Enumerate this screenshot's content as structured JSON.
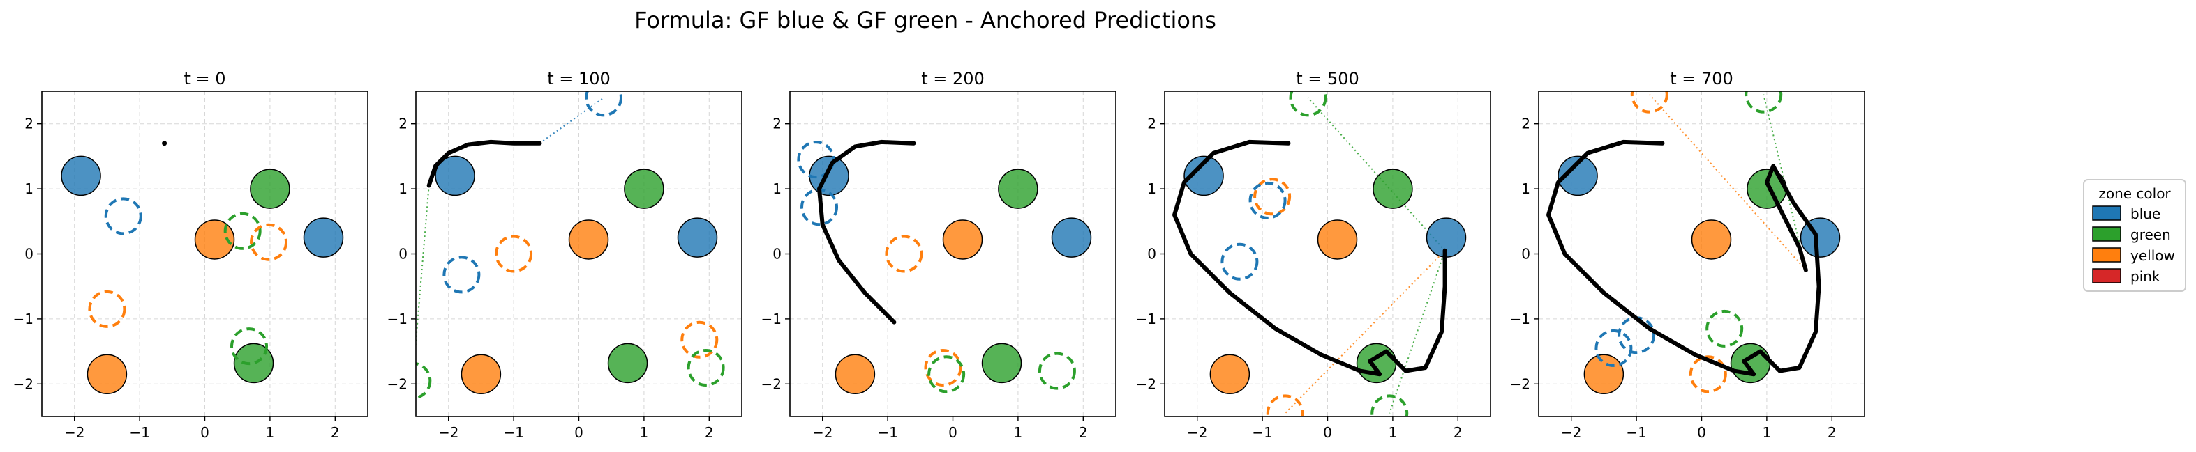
{
  "title": "Formula: GF blue & GF green - Anchored Predictions",
  "colors": {
    "blue": "#1f77b4",
    "green": "#2ca02c",
    "yellow": "#ff7f0e",
    "pink": "#d62728",
    "trajectory": "#000000"
  },
  "legend": {
    "title": "zone color",
    "placement": "right",
    "entries": [
      {
        "label": "blue",
        "color": "#1f77b4"
      },
      {
        "label": "green",
        "color": "#2ca02c"
      },
      {
        "label": "yellow",
        "color": "#ff7f0e"
      },
      {
        "label": "pink",
        "color": "#d62728"
      }
    ]
  },
  "chart_data": [
    {
      "type": "scatter",
      "title": "t = 0",
      "xlim": [
        -2.5,
        2.5
      ],
      "ylim": [
        -2.5,
        2.5
      ],
      "xticks": [
        -2,
        -1,
        0,
        1,
        2
      ],
      "yticks": [
        -2,
        -1,
        0,
        1,
        2
      ],
      "grid": true,
      "zones": [
        {
          "color": "blue",
          "x": -1.9,
          "y": 1.2
        },
        {
          "color": "green",
          "x": 1.0,
          "y": 1.0
        },
        {
          "color": "yellow",
          "x": 0.15,
          "y": 0.22
        },
        {
          "color": "blue",
          "x": 1.82,
          "y": 0.25
        },
        {
          "color": "yellow",
          "x": -1.5,
          "y": -1.85
        },
        {
          "color": "green",
          "x": 0.75,
          "y": -1.68
        }
      ],
      "predictions": [
        {
          "color": "blue",
          "x": -1.25,
          "y": 0.58
        },
        {
          "color": "green",
          "x": 0.58,
          "y": 0.35
        },
        {
          "color": "yellow",
          "x": 0.98,
          "y": 0.18
        },
        {
          "color": "yellow",
          "x": -1.5,
          "y": -0.85
        },
        {
          "color": "green",
          "x": 0.68,
          "y": -1.42
        }
      ],
      "trajectory": [
        [
          -0.62,
          1.7
        ]
      ],
      "links": []
    },
    {
      "type": "scatter",
      "title": "t = 100",
      "xlim": [
        -2.5,
        2.5
      ],
      "ylim": [
        -2.5,
        2.5
      ],
      "xticks": [
        -2,
        -1,
        0,
        1,
        2
      ],
      "yticks": [
        -2,
        -1,
        0,
        1,
        2
      ],
      "grid": true,
      "zones": [
        {
          "color": "blue",
          "x": -1.9,
          "y": 1.2
        },
        {
          "color": "green",
          "x": 1.0,
          "y": 1.0
        },
        {
          "color": "yellow",
          "x": 0.15,
          "y": 0.22
        },
        {
          "color": "blue",
          "x": 1.82,
          "y": 0.25
        },
        {
          "color": "yellow",
          "x": -1.5,
          "y": -1.85
        },
        {
          "color": "green",
          "x": 0.75,
          "y": -1.68
        }
      ],
      "predictions": [
        {
          "color": "blue",
          "x": 0.38,
          "y": 2.4
        },
        {
          "color": "blue",
          "x": -1.8,
          "y": -0.32
        },
        {
          "color": "yellow",
          "x": -1.0,
          "y": 0.0
        },
        {
          "color": "green",
          "x": -2.55,
          "y": -1.95
        },
        {
          "color": "yellow",
          "x": 1.85,
          "y": -1.32
        },
        {
          "color": "green",
          "x": 1.95,
          "y": -1.75
        }
      ],
      "trajectory": [
        [
          -2.3,
          1.05
        ],
        [
          -2.2,
          1.35
        ],
        [
          -2.0,
          1.55
        ],
        [
          -1.7,
          1.68
        ],
        [
          -1.35,
          1.72
        ],
        [
          -1.0,
          1.7
        ],
        [
          -0.6,
          1.7
        ]
      ],
      "links": [
        {
          "color": "blue",
          "from": [
            -0.6,
            1.7
          ],
          "to": [
            0.38,
            2.4
          ]
        },
        {
          "color": "green",
          "from": [
            -2.3,
            1.05
          ],
          "to": [
            -2.55,
            -1.95
          ]
        }
      ]
    },
    {
      "type": "scatter",
      "title": "t = 200",
      "xlim": [
        -2.5,
        2.5
      ],
      "ylim": [
        -2.5,
        2.5
      ],
      "xticks": [
        -2,
        -1,
        0,
        1,
        2
      ],
      "yticks": [
        -2,
        -1,
        0,
        1,
        2
      ],
      "grid": true,
      "zones": [
        {
          "color": "blue",
          "x": -1.9,
          "y": 1.2
        },
        {
          "color": "green",
          "x": 1.0,
          "y": 1.0
        },
        {
          "color": "yellow",
          "x": 0.15,
          "y": 0.22
        },
        {
          "color": "blue",
          "x": 1.82,
          "y": 0.25
        },
        {
          "color": "yellow",
          "x": -1.5,
          "y": -1.85
        },
        {
          "color": "green",
          "x": 0.75,
          "y": -1.68
        }
      ],
      "predictions": [
        {
          "color": "blue",
          "x": -2.1,
          "y": 1.45
        },
        {
          "color": "blue",
          "x": -2.05,
          "y": 0.72
        },
        {
          "color": "yellow",
          "x": -0.75,
          "y": 0.0
        },
        {
          "color": "yellow",
          "x": -0.15,
          "y": -1.75
        },
        {
          "color": "green",
          "x": -0.1,
          "y": -1.85
        },
        {
          "color": "green",
          "x": 1.6,
          "y": -1.8
        }
      ],
      "trajectory": [
        [
          -0.9,
          -1.05
        ],
        [
          -1.35,
          -0.6
        ],
        [
          -1.75,
          -0.1
        ],
        [
          -2.0,
          0.45
        ],
        [
          -2.05,
          1.0
        ],
        [
          -1.85,
          1.4
        ],
        [
          -1.5,
          1.65
        ],
        [
          -1.1,
          1.72
        ],
        [
          -0.6,
          1.7
        ]
      ],
      "links": []
    },
    {
      "type": "scatter",
      "title": "t = 500",
      "xlim": [
        -2.5,
        2.5
      ],
      "ylim": [
        -2.5,
        2.5
      ],
      "xticks": [
        -2,
        -1,
        0,
        1,
        2
      ],
      "yticks": [
        -2,
        -1,
        0,
        1,
        2
      ],
      "grid": true,
      "zones": [
        {
          "color": "blue",
          "x": -1.9,
          "y": 1.2
        },
        {
          "color": "green",
          "x": 1.0,
          "y": 1.0
        },
        {
          "color": "yellow",
          "x": 0.15,
          "y": 0.22
        },
        {
          "color": "blue",
          "x": 1.82,
          "y": 0.25
        },
        {
          "color": "yellow",
          "x": -1.5,
          "y": -1.85
        },
        {
          "color": "green",
          "x": 0.75,
          "y": -1.68
        }
      ],
      "predictions": [
        {
          "color": "green",
          "x": -0.3,
          "y": 2.4
        },
        {
          "color": "yellow",
          "x": -0.85,
          "y": 0.88
        },
        {
          "color": "blue",
          "x": -0.92,
          "y": 0.82
        },
        {
          "color": "blue",
          "x": -1.35,
          "y": -0.12
        },
        {
          "color": "yellow",
          "x": -0.65,
          "y": -2.45
        },
        {
          "color": "green",
          "x": 0.95,
          "y": -2.45
        }
      ],
      "trajectory": [
        [
          -0.6,
          1.7
        ],
        [
          -1.2,
          1.72
        ],
        [
          -1.75,
          1.55
        ],
        [
          -2.2,
          1.1
        ],
        [
          -2.35,
          0.6
        ],
        [
          -2.1,
          0.0
        ],
        [
          -1.5,
          -0.6
        ],
        [
          -0.8,
          -1.15
        ],
        [
          -0.1,
          -1.55
        ],
        [
          0.5,
          -1.8
        ],
        [
          0.8,
          -1.85
        ],
        [
          0.65,
          -1.65
        ],
        [
          0.9,
          -1.5
        ],
        [
          1.2,
          -1.8
        ],
        [
          1.5,
          -1.75
        ],
        [
          1.75,
          -1.2
        ],
        [
          1.8,
          -0.5
        ],
        [
          1.8,
          0.05
        ]
      ],
      "links": [
        {
          "color": "green",
          "from": [
            1.8,
            0.05
          ],
          "to": [
            -0.3,
            2.4
          ]
        },
        {
          "color": "yellow",
          "from": [
            1.8,
            0.05
          ],
          "to": [
            -0.65,
            -2.45
          ]
        },
        {
          "color": "green",
          "from": [
            1.8,
            0.05
          ],
          "to": [
            0.95,
            -2.45
          ]
        }
      ]
    },
    {
      "type": "scatter",
      "title": "t = 700",
      "xlim": [
        -2.5,
        2.5
      ],
      "ylim": [
        -2.5,
        2.5
      ],
      "xticks": [
        -2,
        -1,
        0,
        1,
        2
      ],
      "yticks": [
        -2,
        -1,
        0,
        1,
        2
      ],
      "grid": true,
      "zones": [
        {
          "color": "blue",
          "x": -1.9,
          "y": 1.2
        },
        {
          "color": "green",
          "x": 1.0,
          "y": 1.0
        },
        {
          "color": "yellow",
          "x": 0.15,
          "y": 0.22
        },
        {
          "color": "blue",
          "x": 1.82,
          "y": 0.25
        },
        {
          "color": "yellow",
          "x": -1.5,
          "y": -1.85
        },
        {
          "color": "green",
          "x": 0.75,
          "y": -1.68
        }
      ],
      "predictions": [
        {
          "color": "yellow",
          "x": -0.8,
          "y": 2.45
        },
        {
          "color": "green",
          "x": 0.95,
          "y": 2.45
        },
        {
          "color": "blue",
          "x": -1.0,
          "y": -1.25
        },
        {
          "color": "blue",
          "x": -1.35,
          "y": -1.45
        },
        {
          "color": "green",
          "x": 0.35,
          "y": -1.15
        },
        {
          "color": "yellow",
          "x": 0.1,
          "y": -1.85
        }
      ],
      "trajectory": [
        [
          -0.6,
          1.7
        ],
        [
          -1.2,
          1.72
        ],
        [
          -1.75,
          1.55
        ],
        [
          -2.2,
          1.1
        ],
        [
          -2.35,
          0.6
        ],
        [
          -2.1,
          0.0
        ],
        [
          -1.5,
          -0.6
        ],
        [
          -0.8,
          -1.15
        ],
        [
          -0.1,
          -1.55
        ],
        [
          0.5,
          -1.8
        ],
        [
          0.8,
          -1.85
        ],
        [
          0.65,
          -1.65
        ],
        [
          0.9,
          -1.5
        ],
        [
          1.2,
          -1.8
        ],
        [
          1.5,
          -1.75
        ],
        [
          1.75,
          -1.2
        ],
        [
          1.8,
          -0.5
        ],
        [
          1.75,
          0.3
        ],
        [
          1.4,
          0.8
        ],
        [
          1.1,
          1.35
        ],
        [
          1.0,
          1.1
        ],
        [
          1.3,
          0.5
        ],
        [
          1.5,
          0.1
        ],
        [
          1.6,
          -0.25
        ]
      ],
      "links": [
        {
          "color": "yellow",
          "from": [
            1.6,
            -0.25
          ],
          "to": [
            -0.8,
            2.45
          ]
        },
        {
          "color": "green",
          "from": [
            1.6,
            -0.25
          ],
          "to": [
            0.95,
            2.45
          ]
        }
      ]
    }
  ]
}
